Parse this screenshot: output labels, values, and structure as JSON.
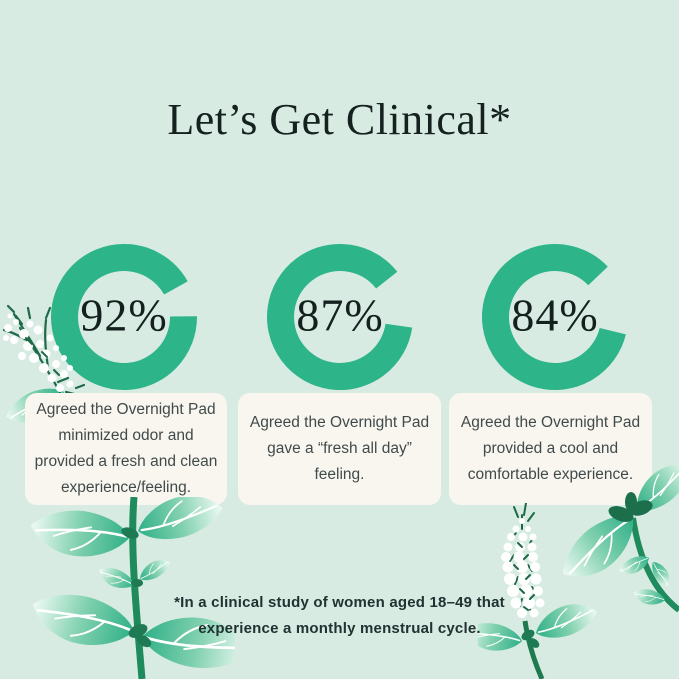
{
  "page": {
    "background_color": "#d7ebe3",
    "accent_color": "#2db489",
    "card_color": "#f8f6ef"
  },
  "header": {
    "title": "Let’s Get Clinical*"
  },
  "chart_data": [
    {
      "type": "pie",
      "variant": "donut-gauge",
      "label": "92%",
      "value": 92,
      "max": 100,
      "color": "#2db489",
      "gap_center_deg_from_top": 75,
      "caption": "Agreed the Overnight Pad minimized odor and provided a fresh and clean experience/feeling."
    },
    {
      "type": "pie",
      "variant": "donut-gauge",
      "label": "87%",
      "value": 87,
      "max": 100,
      "color": "#2db489",
      "gap_center_deg_from_top": 75,
      "caption": "Agreed the Overnight Pad gave a “fresh all day” feeling."
    },
    {
      "type": "pie",
      "variant": "donut-gauge",
      "label": "84%",
      "value": 84,
      "max": 100,
      "color": "#2db489",
      "gap_center_deg_from_top": 75,
      "caption": "Agreed the Overnight Pad provided a cool and comfortable experience."
    }
  ],
  "footnote": {
    "lines": [
      "*In a clinical study of women aged 18–49 that",
      "experience a monthly menstrual cycle."
    ]
  },
  "decor": {
    "plants": [
      "babys-breath-sprig",
      "peek-leaf",
      "mint-stem",
      "mint-flower-spike",
      "mint-branch"
    ]
  }
}
